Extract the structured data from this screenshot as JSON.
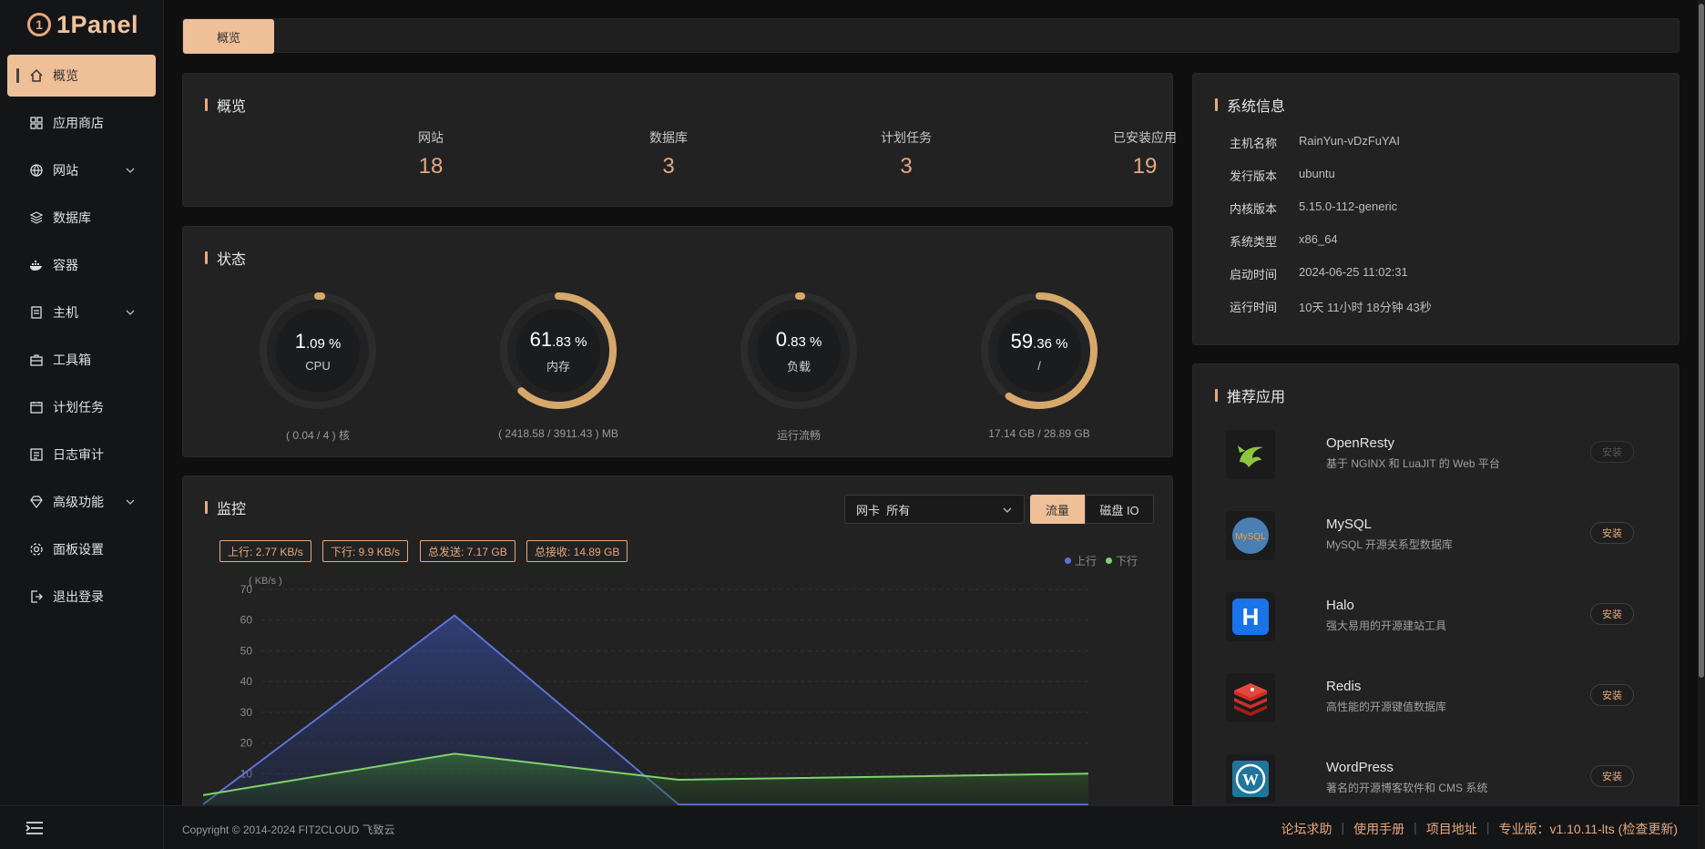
{
  "app": {
    "logo_mark": "1",
    "logo_text": "1Panel"
  },
  "sidebar": {
    "items": [
      {
        "label": "概览",
        "icon": "home-icon"
      },
      {
        "label": "应用商店",
        "icon": "grid-icon"
      },
      {
        "label": "网站",
        "icon": "globe-icon"
      },
      {
        "label": "数据库",
        "icon": "layers-icon"
      },
      {
        "label": "容器",
        "icon": "docker-icon"
      },
      {
        "label": "主机",
        "icon": "server-icon"
      },
      {
        "label": "工具箱",
        "icon": "toolbox-icon"
      },
      {
        "label": "计划任务",
        "icon": "calendar-icon"
      },
      {
        "label": "日志审计",
        "icon": "log-icon"
      },
      {
        "label": "高级功能",
        "icon": "diamond-icon"
      },
      {
        "label": "面板设置",
        "icon": "gear-icon"
      },
      {
        "label": "退出登录",
        "icon": "logout-icon"
      }
    ]
  },
  "topbar": {
    "tab_label": "概览"
  },
  "overview": {
    "title": "概览",
    "items": [
      {
        "label": "网站",
        "value": "18"
      },
      {
        "label": "数据库",
        "value": "3"
      },
      {
        "label": "计划任务",
        "value": "3"
      },
      {
        "label": "已安装应用",
        "value": "19"
      }
    ]
  },
  "status": {
    "title": "状态",
    "gauges": [
      {
        "int": "1",
        "dec": ".09 %",
        "label": "CPU",
        "detail": "( 0.04 / 4 ) 核",
        "percent": 1.09
      },
      {
        "int": "61",
        "dec": ".83 %",
        "label": "内存",
        "detail": "( 2418.58 / 3911.43 ) MB",
        "percent": 61.83
      },
      {
        "int": "0",
        "dec": ".83 %",
        "label": "负载",
        "detail": "运行流畅",
        "percent": 0.83
      },
      {
        "int": "59",
        "dec": ".36 %",
        "label": "/",
        "detail": "17.14 GB / 28.89 GB",
        "percent": 59.36
      }
    ]
  },
  "monitor": {
    "title": "监控",
    "nic_prefix": "网卡",
    "nic_value": "所有",
    "seg_on": "流量",
    "seg_off": "磁盘 IO",
    "pills": [
      "上行: 2.77 KB/s",
      "下行: 9.9 KB/s",
      "总发送: 7.17 GB",
      "总接收: 14.89 GB"
    ],
    "legend": [
      "上行",
      "下行"
    ]
  },
  "chart_data": {
    "type": "area",
    "ylabel": "( KB/s )",
    "yticks": [
      10,
      20,
      30,
      40,
      50,
      60,
      70
    ],
    "ylim": [
      0,
      70
    ],
    "x": [
      0,
      1,
      2,
      3
    ],
    "series": [
      {
        "name": "上行",
        "values": [
          0,
          61.5,
          0,
          0
        ],
        "color": "#5b73d6"
      },
      {
        "name": "下行",
        "values": [
          3,
          16.5,
          8,
          10
        ],
        "color": "#7ed36a"
      }
    ]
  },
  "system": {
    "title": "系统信息",
    "rows": [
      {
        "k": "主机名称",
        "v": "RainYun-vDzFuYAI"
      },
      {
        "k": "发行版本",
        "v": "ubuntu"
      },
      {
        "k": "内核版本",
        "v": "5.15.0-112-generic"
      },
      {
        "k": "系统类型",
        "v": "x86_64"
      },
      {
        "k": "启动时间",
        "v": "2024-06-25 11:02:31"
      },
      {
        "k": "运行时间",
        "v": "10天 11小时 18分钟 43秒"
      }
    ]
  },
  "apps": {
    "title": "推荐应用",
    "items": [
      {
        "name": "OpenResty",
        "desc": "基于 NGINX 和 LuaJIT 的 Web 平台",
        "btn": "安装",
        "icon": "openresty-icon"
      },
      {
        "name": "MySQL",
        "desc": "MySQL 开源关系型数据库",
        "btn": "安装",
        "icon": "mysql-icon",
        "logo_text": "MySQL"
      },
      {
        "name": "Halo",
        "desc": "强大易用的开源建站工具",
        "btn": "安装",
        "icon": "halo-icon",
        "logo_text": "H"
      },
      {
        "name": "Redis",
        "desc": "高性能的开源键值数据库",
        "btn": "安装",
        "icon": "redis-icon"
      },
      {
        "name": "WordPress",
        "desc": "著名的开源博客软件和 CMS 系统",
        "btn": "安装",
        "icon": "wordpress-icon",
        "logo_text": "W"
      }
    ]
  },
  "footer": {
    "copyright": "Copyright © 2014-2024 FIT2CLOUD 飞致云",
    "links": [
      "论坛求助",
      "使用手册",
      "项目地址",
      "专业版：v1.10.11-lts (检查更新)"
    ]
  },
  "colors": {
    "accent": "#efbf98",
    "accent_text": "#e6a97d",
    "bg": "#0f0f10",
    "card": "#222223"
  }
}
